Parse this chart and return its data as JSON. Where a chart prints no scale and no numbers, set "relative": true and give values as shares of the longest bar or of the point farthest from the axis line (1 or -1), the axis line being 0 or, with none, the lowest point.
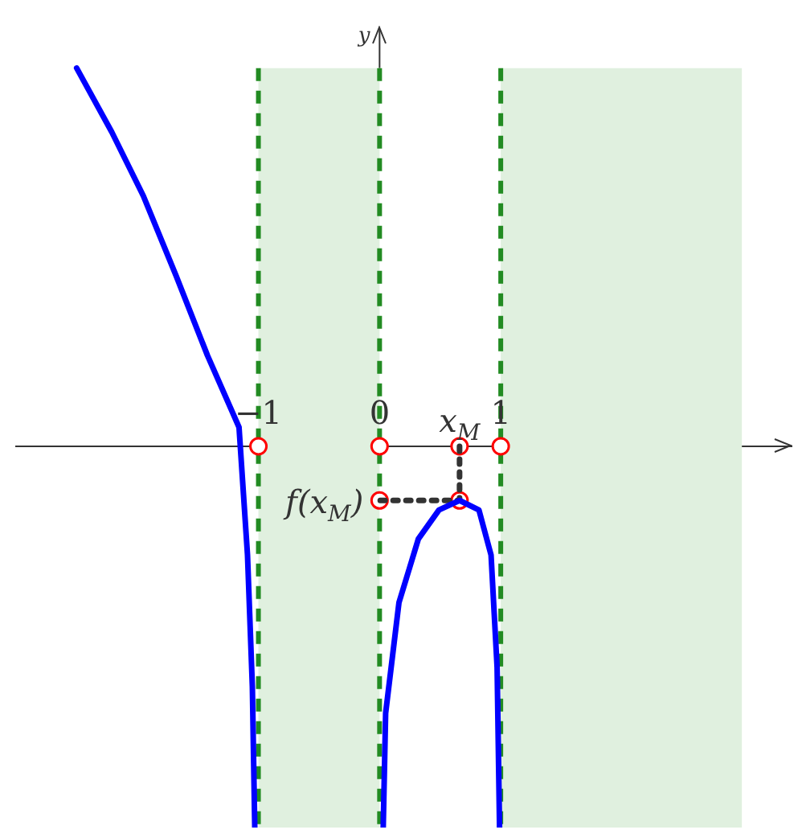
{
  "chart_data": {
    "type": "line",
    "relative": true,
    "ylabel": "y",
    "xlim": [
      -3.0,
      3.4
    ],
    "xticks": [
      {
        "value": -1,
        "label": "−1"
      },
      0,
      1
    ],
    "tick_labels": "x",
    "grid": false,
    "legend": false,
    "series": [
      {
        "color": "#0000ff",
        "line_style": "solid",
        "marker": "none",
        "x": [
          -2.5,
          -2.21,
          -1.95,
          -1.68,
          -1.42,
          -1.16,
          -1.09,
          -1.05,
          -1.03
        ],
        "values": [
          0.992,
          0.824,
          0.657,
          0.448,
          0.238,
          0.05,
          -0.285,
          -0.63,
          -1
        ]
      },
      {
        "color": "#0000ff",
        "line_style": "solid",
        "marker": "none",
        "x": [
          0.03,
          0.05,
          0.16,
          0.32,
          0.49,
          0.66,
          0.82,
          0.92,
          0.97,
          0.99
        ],
        "values": [
          -1,
          -0.7,
          -0.41,
          -0.243,
          -0.167,
          -0.142,
          -0.167,
          -0.285,
          -0.58,
          -1
        ]
      },
      {
        "color": "#333333",
        "line_style": "dotted",
        "marker": "none",
        "x": [
          0.66,
          0.66,
          0
        ],
        "values": [
          0,
          -0.142,
          -0.142
        ]
      },
      {
        "type": "scatter",
        "color": "#ff0000",
        "marker": "circle",
        "x": [
          -1,
          0,
          1,
          0.66,
          0,
          0.66
        ],
        "values": [
          0,
          0,
          0,
          0,
          -0.142,
          -0.142
        ]
      }
    ],
    "ref_lines": [
      {
        "axis": "x",
        "value": -1,
        "color": "#228b22",
        "line_style": "dashed"
      },
      {
        "axis": "x",
        "value": 0,
        "color": "#228b22",
        "line_style": "dashed"
      },
      {
        "axis": "x",
        "value": 1,
        "color": "#228b22",
        "line_style": "dashed"
      }
    ],
    "bands": [
      {
        "axis": "x",
        "from": -1,
        "to": 0,
        "color": "#e0f0df"
      },
      {
        "axis": "x",
        "from": 1,
        "to": 2.99,
        "color": "#e0f0df"
      }
    ],
    "annotations": [
      {
        "text": "x$_{M}$",
        "x": 0.66,
        "y": 0
      },
      {
        "text": "f(x$_{M}$)",
        "x": 0,
        "y": -0.142
      }
    ]
  }
}
